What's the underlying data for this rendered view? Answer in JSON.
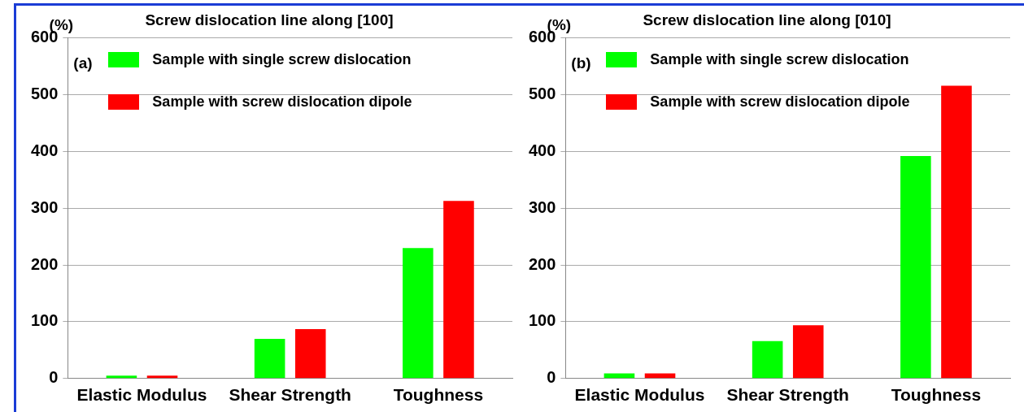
{
  "chart_data": [
    {
      "type": "bar",
      "title": "Screw dislocation line along [100]",
      "ylabel": "(%)",
      "annotations": [
        "(a)"
      ],
      "categories": [
        "Elastic Modulus",
        "Shear Strength",
        "Toughness"
      ],
      "series": [
        {
          "name": "Sample with single screw dislocation",
          "color": "#00ff00",
          "values": [
            5,
            70,
            230
          ]
        },
        {
          "name": "Sample with screw dislocation dipole",
          "color": "#ff0000",
          "values": [
            5,
            87,
            313
          ]
        }
      ],
      "ylim": [
        0,
        600
      ],
      "yticks": [
        0,
        100,
        200,
        300,
        400,
        500,
        600
      ],
      "grid": "y",
      "legend": "top left"
    },
    {
      "type": "bar",
      "title": "Screw dislocation line along [010]",
      "ylabel": "(%)",
      "annotations": [
        "(b)"
      ],
      "categories": [
        "Elastic Modulus",
        "Shear Strength",
        "Toughness"
      ],
      "series": [
        {
          "name": "Sample with single screw dislocation",
          "color": "#00ff00",
          "values": [
            9,
            66,
            392
          ]
        },
        {
          "name": "Sample with screw dislocation dipole",
          "color": "#ff0000",
          "values": [
            9,
            94,
            516
          ]
        }
      ],
      "ylim": [
        0,
        600
      ],
      "yticks": [
        0,
        100,
        200,
        300,
        400,
        500,
        600
      ],
      "grid": "y",
      "legend": "top left"
    }
  ]
}
